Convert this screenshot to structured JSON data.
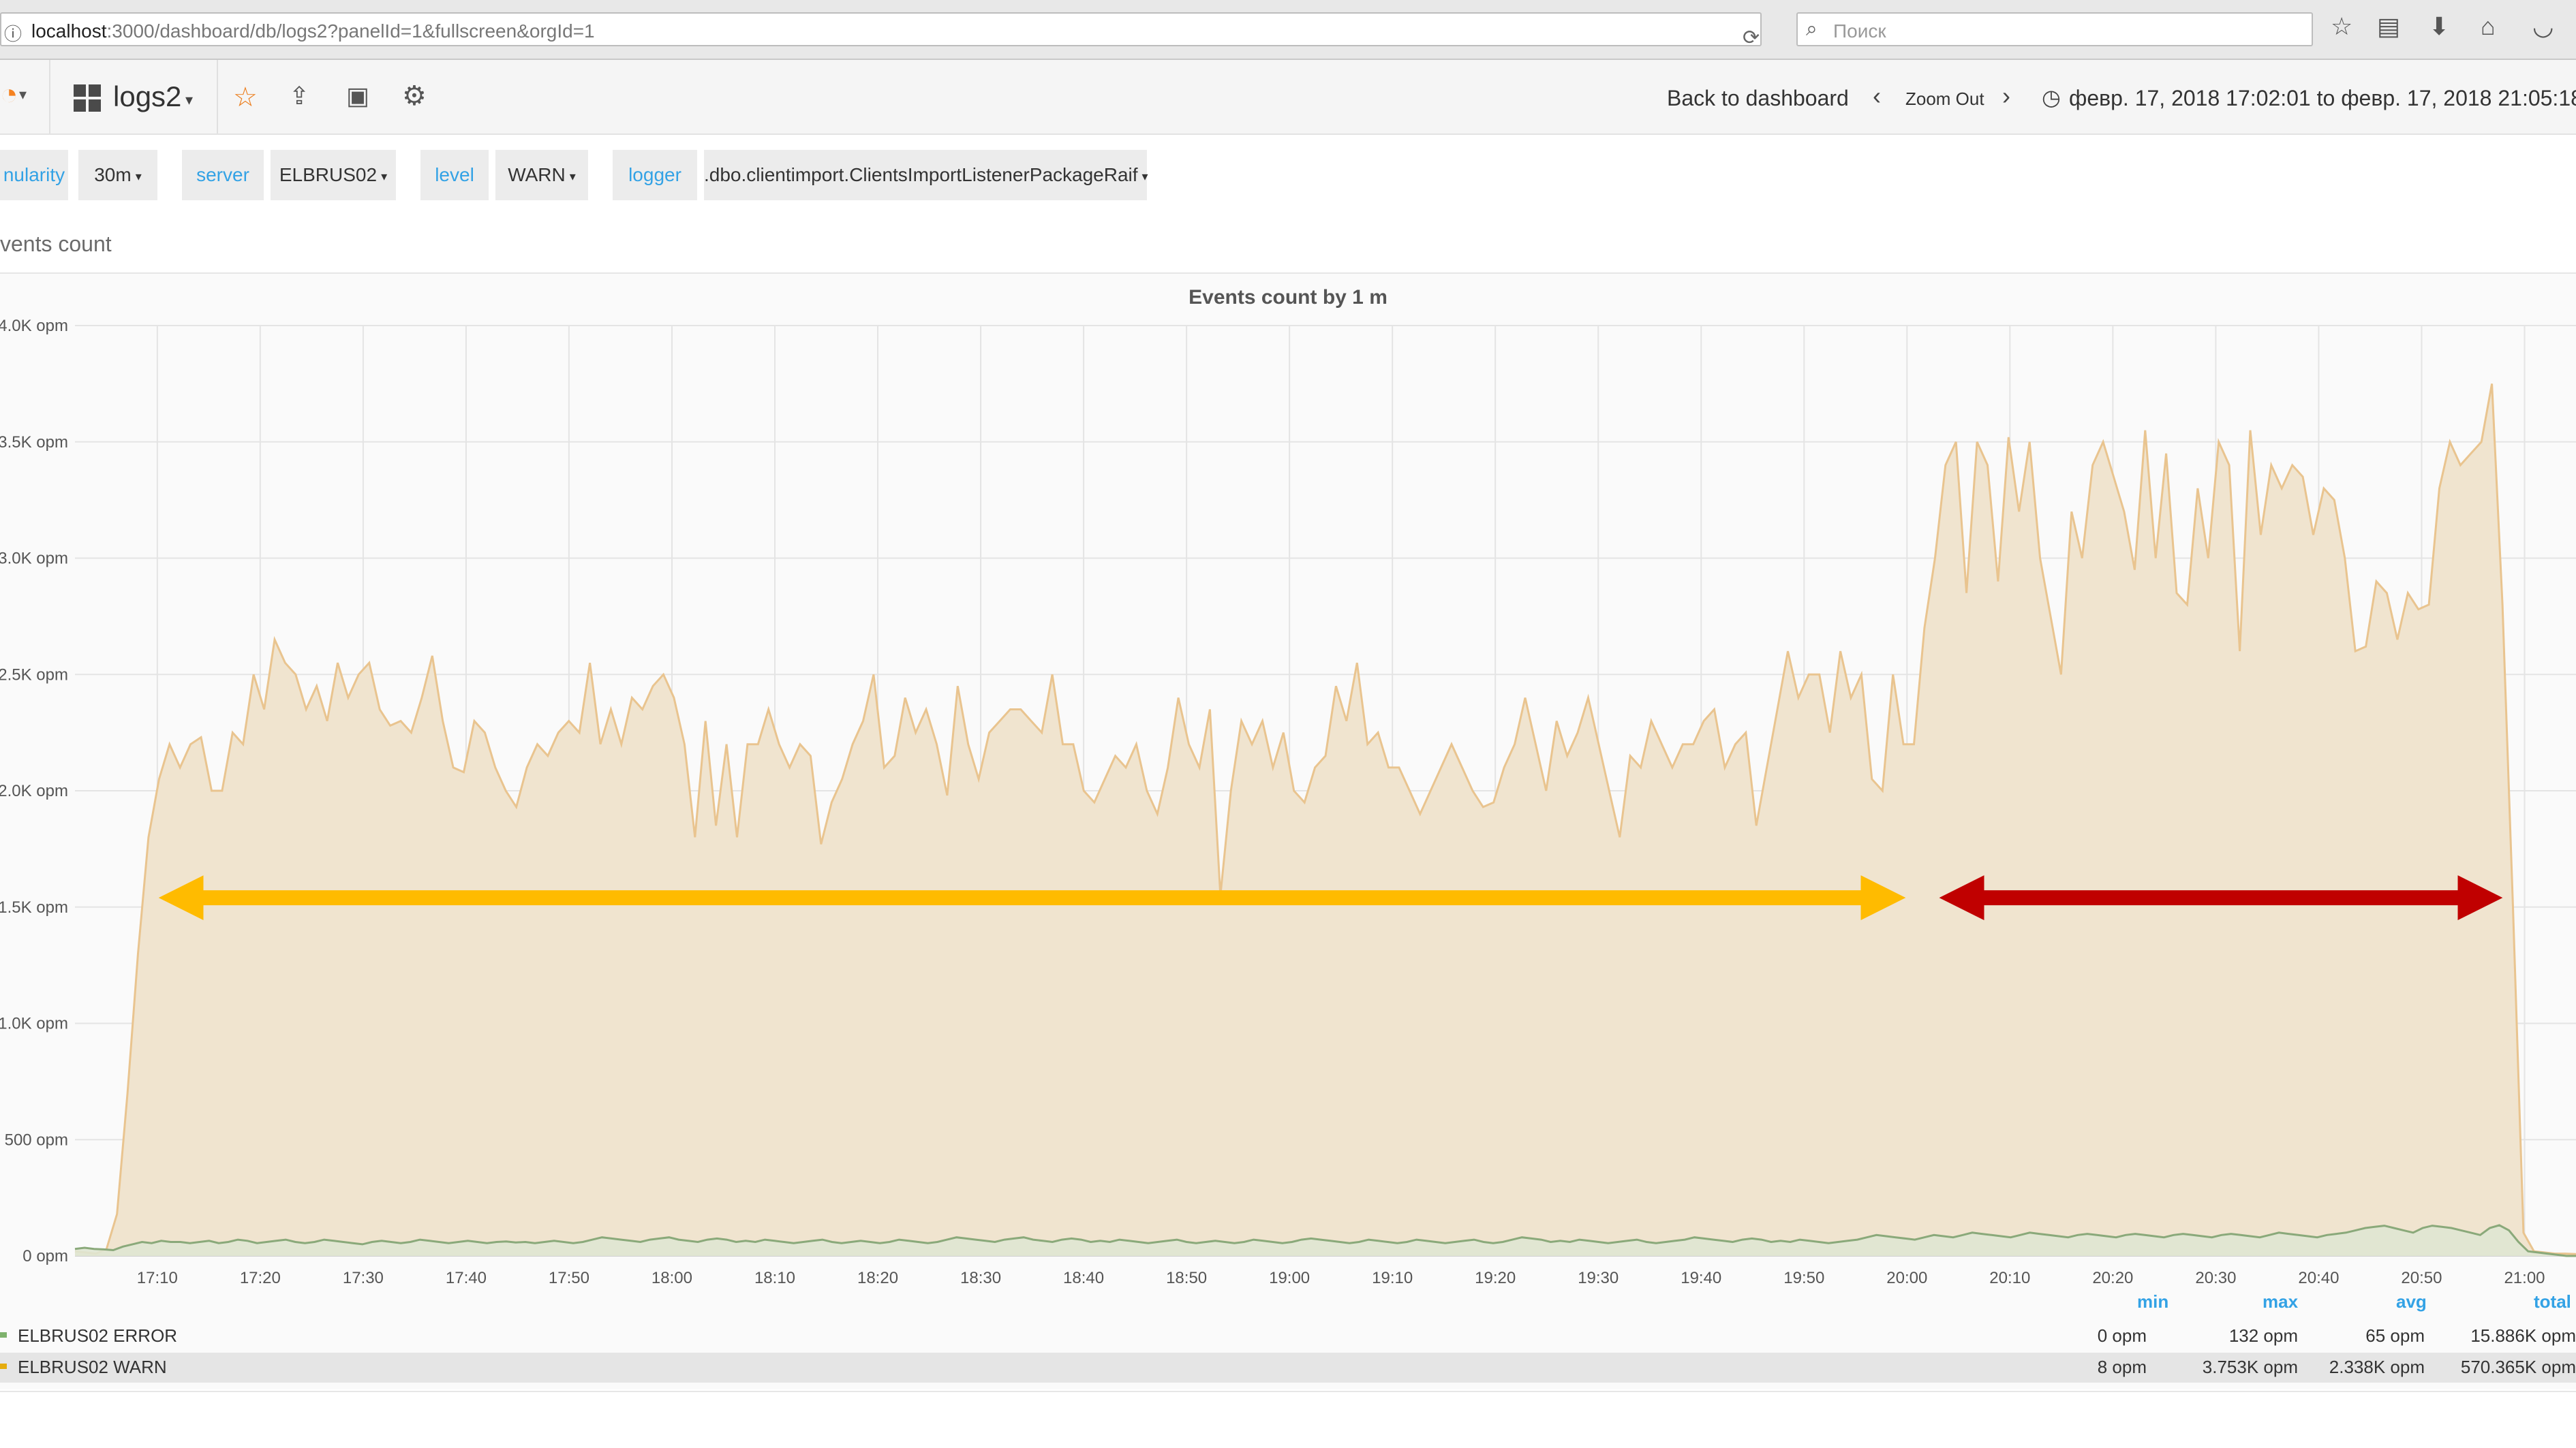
{
  "browser": {
    "url_host": "localhost",
    "url_rest": ":3000/dashboard/db/logs2?panelId=1&fullscreen&orgId=1",
    "search_placeholder": "Поиск"
  },
  "nav": {
    "dashboard_title": "logs2",
    "back_label": "Back to dashboard",
    "zoom_out_label": "Zoom Out",
    "time_range": "февр. 17, 2018 17:02:01 to февр. 17, 2018 21:05:18"
  },
  "variables": [
    {
      "label": "nularity",
      "value": "30m"
    },
    {
      "label": "server",
      "value": "ELBRUS02"
    },
    {
      "label": "level",
      "value": "WARN"
    },
    {
      "label": "logger",
      "value": ".dbo.clientimport.ClientsImportListenerPackageRaif"
    }
  ],
  "panel": {
    "title": "vents count"
  },
  "chart_data": {
    "type": "area",
    "title": "Events count by 1 m",
    "x_ticks": [
      "17:10",
      "17:20",
      "17:30",
      "17:40",
      "17:50",
      "18:00",
      "18:10",
      "18:20",
      "18:30",
      "18:40",
      "18:50",
      "19:00",
      "19:10",
      "19:20",
      "19:30",
      "19:40",
      "19:50",
      "20:00",
      "20:10",
      "20:20",
      "20:30",
      "20:40",
      "20:50",
      "21:00"
    ],
    "y_ticks": [
      "0 opm",
      "500 opm",
      "1.0K opm",
      "1.5K opm",
      "2.0K opm",
      "2.5K opm",
      "3.0K opm",
      "3.5K opm",
      "4.0K opm"
    ],
    "ylim": [
      0,
      4000
    ],
    "x_range": [
      "17:02",
      "21:05"
    ],
    "series": [
      {
        "name": "ELBRUS02 ERROR",
        "color": "#7eb26d",
        "values": [
          30,
          35,
          30,
          28,
          25,
          40,
          50,
          60,
          55,
          65,
          60,
          60,
          55,
          60,
          65,
          55,
          60,
          70,
          65,
          55,
          60,
          65,
          70,
          60,
          55,
          60,
          70,
          65,
          60,
          55,
          50,
          60,
          65,
          60,
          55,
          60,
          70,
          65,
          60,
          55,
          60,
          65,
          60,
          55,
          60,
          62,
          58,
          60,
          55,
          60,
          65,
          60,
          55,
          60,
          70,
          80,
          75,
          70,
          65,
          60,
          70,
          75,
          80,
          70,
          65,
          60,
          70,
          75,
          70,
          60,
          65,
          60,
          70,
          65,
          60,
          55,
          60,
          65,
          70,
          60,
          55,
          60,
          65,
          60,
          55,
          60,
          70,
          65,
          60,
          55,
          60,
          70,
          80,
          75,
          70,
          65,
          60,
          70,
          75,
          80,
          70,
          65,
          60,
          70,
          75,
          70,
          60,
          65,
          60,
          70,
          65,
          60,
          55,
          60,
          65,
          70,
          60,
          55,
          60,
          65,
          60,
          55,
          60,
          70,
          65,
          60,
          55,
          60,
          70,
          75,
          70,
          65,
          60,
          55,
          60,
          70,
          65,
          60,
          55,
          60,
          70,
          65,
          60,
          55,
          60,
          65,
          70,
          60,
          55,
          60,
          70,
          80,
          75,
          70,
          60,
          65,
          60,
          70,
          65,
          60,
          55,
          60,
          65,
          70,
          60,
          55,
          60,
          65,
          70,
          80,
          75,
          70,
          65,
          60,
          70,
          75,
          70,
          60,
          65,
          60,
          70,
          65,
          60,
          55,
          60,
          65,
          70,
          80,
          90,
          85,
          80,
          75,
          70,
          80,
          90,
          85,
          80,
          90,
          100,
          95,
          90,
          85,
          80,
          90,
          100,
          95,
          90,
          85,
          80,
          90,
          95,
          90,
          85,
          80,
          90,
          95,
          90,
          85,
          80,
          90,
          95,
          90,
          85,
          80,
          90,
          95,
          90,
          85,
          80,
          90,
          100,
          95,
          90,
          85,
          80,
          90,
          95,
          100,
          110,
          120,
          125,
          130,
          120,
          110,
          100,
          120,
          130,
          125,
          120,
          110,
          100,
          90,
          120,
          132,
          110,
          60,
          20,
          15,
          10,
          5,
          0,
          0
        ],
        "stats": {
          "min": "0 opm",
          "max": "132 opm",
          "avg": "65 opm",
          "total": "15.886K opm"
        }
      },
      {
        "name": "ELBRUS02 WARN",
        "color": "#e5ac0e",
        "values": [
          20,
          15,
          10,
          30,
          180,
          700,
          1300,
          1800,
          2050,
          2200,
          2100,
          2200,
          2230,
          2000,
          2000,
          2250,
          2200,
          2500,
          2350,
          2650,
          2550,
          2500,
          2350,
          2450,
          2300,
          2550,
          2400,
          2500,
          2550,
          2350,
          2280,
          2300,
          2250,
          2400,
          2580,
          2300,
          2100,
          2080,
          2300,
          2250,
          2100,
          2000,
          1930,
          2100,
          2200,
          2150,
          2250,
          2300,
          2250,
          2550,
          2200,
          2350,
          2200,
          2400,
          2350,
          2450,
          2500,
          2400,
          2200,
          1800,
          2300,
          1850,
          2200,
          1800,
          2200,
          2200,
          2350,
          2200,
          2100,
          2200,
          2150,
          1770,
          1950,
          2050,
          2200,
          2300,
          2500,
          2100,
          2150,
          2400,
          2250,
          2350,
          2200,
          1980,
          2450,
          2200,
          2050,
          2250,
          2300,
          2350,
          2350,
          2300,
          2250,
          2500,
          2200,
          2200,
          2000,
          1950,
          2050,
          2150,
          2100,
          2200,
          2000,
          1900,
          2100,
          2400,
          2200,
          2100,
          2350,
          1550,
          2000,
          2300,
          2200,
          2300,
          2100,
          2250,
          2000,
          1950,
          2100,
          2150,
          2450,
          2300,
          2550,
          2200,
          2250,
          2100,
          2100,
          2000,
          1900,
          2000,
          2100,
          2200,
          2100,
          2000,
          1930,
          1950,
          2100,
          2200,
          2400,
          2200,
          2000,
          2300,
          2150,
          2250,
          2400,
          2200,
          2000,
          1800,
          2150,
          2100,
          2300,
          2200,
          2100,
          2200,
          2200,
          2300,
          2350,
          2100,
          2200,
          2250,
          1850,
          2100,
          2350,
          2600,
          2400,
          2500,
          2500,
          2250,
          2600,
          2400,
          2500,
          2050,
          2000,
          2500,
          2200,
          2200,
          2700,
          3000,
          3400,
          3500,
          2850,
          3500,
          3400,
          2900,
          3520,
          3200,
          3500,
          3000,
          2750,
          2500,
          3200,
          3000,
          3400,
          3500,
          3350,
          3200,
          2950,
          3550,
          3000,
          3450,
          2850,
          2800,
          3300,
          3000,
          3500,
          3400,
          2600,
          3550,
          3100,
          3400,
          3300,
          3400,
          3350,
          3100,
          3300,
          3250,
          3000,
          2600,
          2620,
          2900,
          2850,
          2650,
          2850,
          2780,
          2800,
          3300,
          3500,
          3400,
          3450,
          3500,
          3750,
          2800,
          1500,
          100,
          20,
          15,
          10,
          10,
          8
        ],
        "stats": {
          "min": "8 opm",
          "max": "3.753K opm",
          "avg": "2.338K opm",
          "total": "570.365K opm"
        }
      }
    ],
    "annotations": [
      {
        "type": "double-arrow",
        "color": "#ffbb00",
        "from": "17:09",
        "to": "20:01",
        "y": 1540
      },
      {
        "type": "double-arrow",
        "color": "#c00000",
        "from": "20:02",
        "to": "20:59",
        "y": 1540
      }
    ]
  },
  "legend": {
    "headers": {
      "min": "min",
      "max": "max",
      "avg": "avg",
      "total": "total"
    }
  }
}
